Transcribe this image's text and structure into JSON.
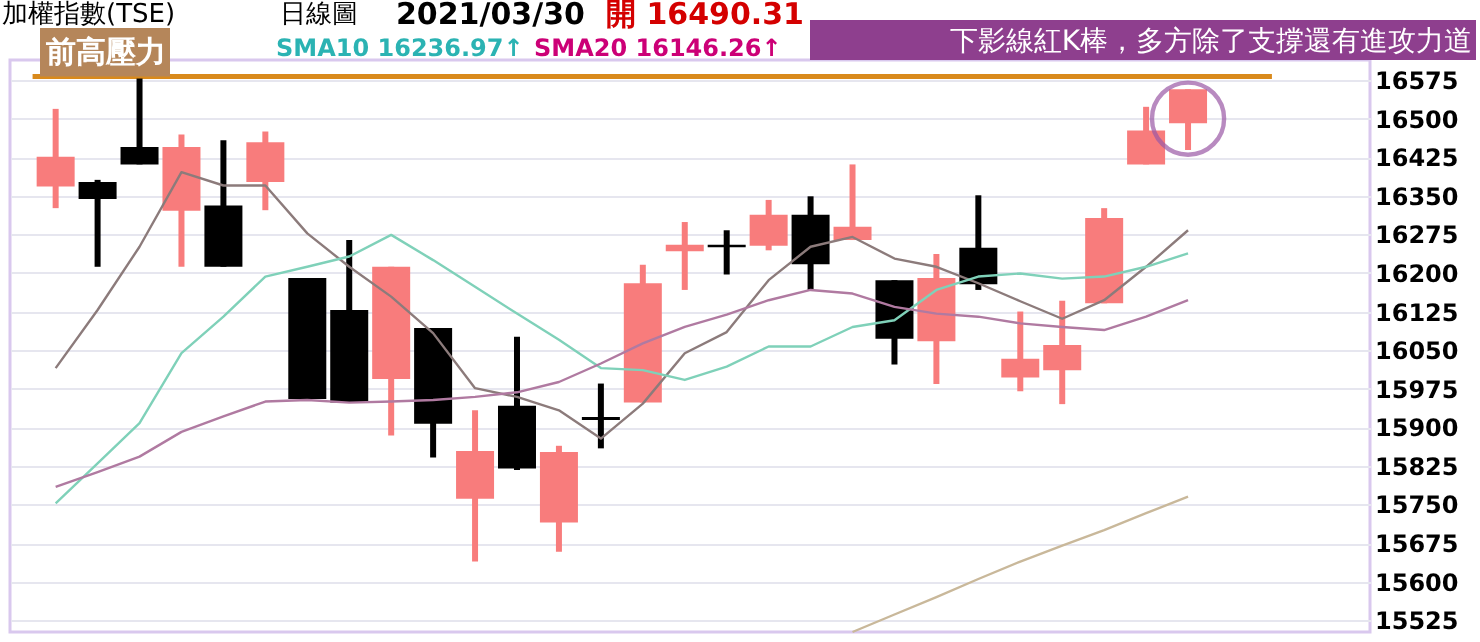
{
  "chart_data": {
    "type": "candlestick",
    "title": "加權指數(TSE)",
    "categories": [
      null,
      null,
      null,
      null,
      null,
      null,
      null,
      null,
      null,
      null,
      null,
      null,
      null,
      null,
      null,
      null,
      null,
      null,
      null,
      null,
      null,
      null,
      null,
      null,
      null,
      null,
      null,
      null
    ],
    "ohlc": [
      [
        16368,
        16519,
        16326,
        16426
      ],
      [
        16377,
        16381,
        16212,
        16344
      ],
      [
        16445,
        16578,
        16411,
        16411
      ],
      [
        16321,
        16469,
        16212,
        16445
      ],
      [
        16331,
        16458,
        16212,
        16212
      ],
      [
        16377,
        16475,
        16322,
        16454
      ],
      [
        16190,
        16190,
        15955,
        15955
      ],
      [
        16128,
        16264,
        15948,
        15948
      ],
      [
        15994,
        16212,
        15884,
        16212
      ],
      [
        16093,
        16093,
        15841,
        15907
      ],
      [
        15761,
        15933,
        15639,
        15854
      ],
      [
        15942,
        16076,
        15817,
        15820
      ],
      [
        15715,
        15864,
        15658,
        15852
      ],
      [
        15920,
        15985,
        15859,
        15914
      ],
      [
        15948,
        16216,
        15948,
        16180
      ],
      [
        16242,
        16299,
        16167,
        16255
      ],
      [
        16255,
        16283,
        16197,
        16250
      ],
      [
        16253,
        16342,
        16244,
        16313
      ],
      [
        16313,
        16349,
        16167,
        16217
      ],
      [
        16264,
        16411,
        16264,
        16290
      ],
      [
        16186,
        16186,
        16022,
        16072
      ],
      [
        16067,
        16237,
        15984,
        16190
      ],
      [
        16249,
        16351,
        16167,
        16178
      ],
      [
        15997,
        16125,
        15970,
        16033
      ],
      [
        16011,
        16146,
        15945,
        16060
      ],
      [
        16141,
        16326,
        16141,
        16307
      ],
      [
        16411,
        16523,
        16411,
        16477
      ],
      [
        16491,
        16557,
        16439,
        16557
      ]
    ],
    "colors": [
      "#f87c7c",
      "#000000",
      "#000000",
      "#f87c7c",
      "#000000",
      "#f87c7c",
      "#000000",
      "#000000",
      "#f87c7c",
      "#000000",
      "#f87c7c",
      "#000000",
      "#f87c7c",
      "#000000",
      "#f87c7c",
      "#f87c7c",
      "#000000",
      "#f87c7c",
      "#000000",
      "#f87c7c",
      "#000000",
      "#f87c7c",
      "#000000",
      "#f87c7c",
      "#f87c7c",
      "#f87c7c",
      "#f87c7c",
      "#f87c7c"
    ],
    "series": [
      {
        "type": "line",
        "color": "#8c7b7b",
        "values": [
          16015,
          16128,
          16251,
          16396,
          16370,
          16370,
          16277,
          16212,
          16154,
          16083,
          15976,
          15959,
          15933,
          15878,
          15946,
          16044,
          16085,
          16186,
          16251,
          16270,
          16228,
          16212,
          16180,
          16145,
          16111,
          16147,
          16212,
          16283
        ]
      },
      {
        "type": "line",
        "color": "#7fd1b9",
        "values": [
          15752,
          15830,
          15908,
          16044,
          16115,
          16193,
          16212,
          16232,
          16274,
          16225,
          16173,
          16121,
          16070,
          16015,
          16011,
          15992,
          16018,
          16057,
          16057,
          16095,
          16108,
          16167,
          16193,
          16199,
          16189,
          16193,
          16212,
          16238
        ]
      },
      {
        "type": "line",
        "color": "#b07aa1",
        "values": [
          15784,
          15813,
          15843,
          15891,
          15921,
          15950,
          15953,
          15948,
          15950,
          15953,
          15959,
          15968,
          15988,
          16024,
          16063,
          16095,
          16119,
          16147,
          16167,
          16160,
          16134,
          16121,
          16115,
          16102,
          16095,
          16089,
          16115,
          16147
        ]
      },
      {
        "type": "line",
        "color": "#c9b89a",
        "values": [
          null,
          null,
          null,
          null,
          null,
          null,
          null,
          null,
          null,
          null,
          null,
          null,
          null,
          null,
          null,
          null,
          null,
          null,
          null,
          15502,
          15536,
          15570,
          15605,
          15639,
          15670,
          15700,
          15733,
          15765
        ]
      }
    ],
    "ylim": [
      15502,
      16614
    ],
    "yticks": [
      15525,
      15600,
      15675,
      15750,
      15825,
      15900,
      15975,
      16050,
      16125,
      16200,
      16275,
      16350,
      16425,
      16500,
      16575
    ],
    "grid": "y",
    "tick_labels": "y",
    "ref_lines": [
      {
        "axis": "y",
        "value": 16582,
        "label": "前高壓力",
        "color": "#d98a1c"
      }
    ],
    "annotations": [
      "日線圖",
      "2021/03/30",
      "開 16490.31",
      "SMA10 16236.97↑",
      "SMA20 16146.26↑",
      {
        "text": "下影線紅K棒，多方除了支撐還有進攻力道",
        "y": 16500
      }
    ]
  }
}
